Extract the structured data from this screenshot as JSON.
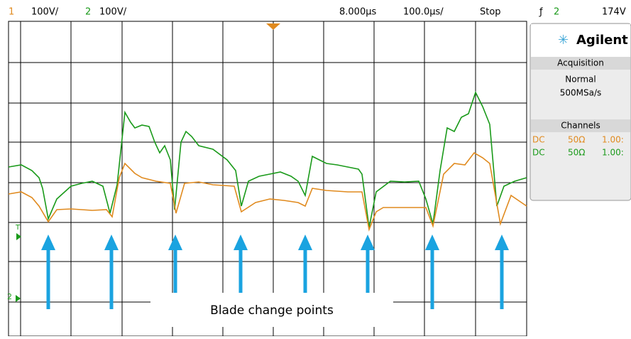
{
  "top_bar": {
    "ch1_label": "1",
    "ch1_scale": "100V/",
    "ch2_label": "2",
    "ch2_scale": "100V/",
    "time_delay": "8.000µs",
    "time_scale": "100.0µs/",
    "run_state": "Stop",
    "trigger_symbol": "ƒ",
    "trigger_source": "2",
    "trigger_level": "174V"
  },
  "panel": {
    "brand": "Agilent",
    "acquisition_title": "Acquisition",
    "acquisition_mode": "Normal",
    "sample_rate": "500MSa/s",
    "channels_title": "Channels",
    "channels": [
      {
        "coupling": "DC",
        "impedance": "50Ω",
        "probe": "1.00:"
      },
      {
        "coupling": "DC",
        "impedance": "50Ω",
        "probe": "1.00:"
      }
    ]
  },
  "markers": {
    "trigger": "T",
    "ground": "2"
  },
  "annotation": "Blade change points"
}
